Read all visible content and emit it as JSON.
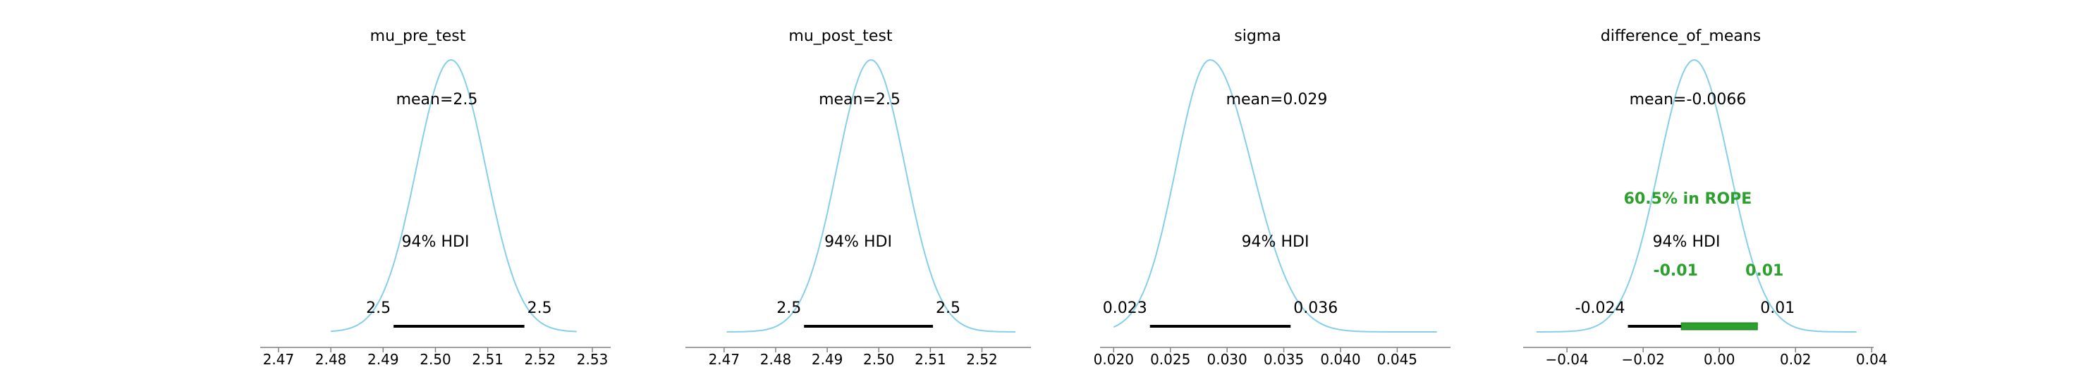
{
  "colors": {
    "curve": "#87ceeb",
    "hdi": "#000000",
    "rope": "#2ca02c",
    "axis": "#808080"
  },
  "chart_data": [
    {
      "type": "density",
      "title": "mu_pre_test",
      "mean_label": "mean=2.5",
      "hdi_label": "94% HDI",
      "hdi": [
        2.492,
        2.517
      ],
      "hdi_tick_labels": [
        "2.5",
        "2.5"
      ],
      "mode": 2.503,
      "sd": 0.0066,
      "x_range": [
        2.48,
        2.527
      ],
      "xlim": [
        2.4665,
        2.5335
      ],
      "xticks": [
        2.47,
        2.48,
        2.49,
        2.5,
        2.51,
        2.52,
        2.53
      ],
      "xtick_labels": [
        "2.47",
        "2.48",
        "2.49",
        "2.50",
        "2.51",
        "2.52",
        "2.53"
      ]
    },
    {
      "type": "density",
      "title": "mu_post_test",
      "mean_label": "mean=2.5",
      "hdi_label": "94% HDI",
      "hdi": [
        2.4855,
        2.5105
      ],
      "hdi_tick_labels": [
        "2.5",
        "2.5"
      ],
      "mode": 2.4985,
      "sd": 0.0066,
      "x_range": [
        2.4705,
        2.5265
      ],
      "xlim": [
        2.4625,
        2.5295
      ],
      "xticks": [
        2.47,
        2.48,
        2.49,
        2.5,
        2.51,
        2.52
      ],
      "xtick_labels": [
        "2.47",
        "2.48",
        "2.49",
        "2.50",
        "2.51",
        "2.52"
      ]
    },
    {
      "type": "density",
      "title": "sigma",
      "mean_label": "mean=0.029",
      "hdi_label": "94% HDI",
      "hdi": [
        0.0232,
        0.0356
      ],
      "hdi_tick_labels": [
        "0.023",
        "0.036"
      ],
      "mode": 0.0285,
      "sd_left": 0.003,
      "sd_right": 0.0037,
      "x_range": [
        0.02,
        0.0485
      ],
      "xlim": [
        0.0188,
        0.0497
      ],
      "xticks": [
        0.02,
        0.025,
        0.03,
        0.035,
        0.04,
        0.045
      ],
      "xtick_labels": [
        "0.020",
        "0.025",
        "0.030",
        "0.035",
        "0.040",
        "0.045"
      ]
    },
    {
      "type": "density",
      "title": "difference_of_means",
      "mean_label": "mean=-0.0066",
      "hdi_label": "94% HDI",
      "hdi": [
        -0.024,
        0.01
      ],
      "hdi_tick_labels": [
        "-0.024",
        "0.01"
      ],
      "mode": -0.0066,
      "sd": 0.0093,
      "x_range": [
        -0.048,
        0.036
      ],
      "xlim": [
        -0.0515,
        0.0405
      ],
      "xticks": [
        -0.04,
        -0.02,
        0.0,
        0.02,
        0.04
      ],
      "xtick_labels": [
        "−0.04",
        "−0.02",
        "0.00",
        "0.02",
        "0.04"
      ],
      "rope": [
        -0.01,
        0.01
      ],
      "rope_label": "60.5% in ROPE",
      "rope_tick_labels": [
        "-0.01",
        "0.01"
      ]
    }
  ]
}
